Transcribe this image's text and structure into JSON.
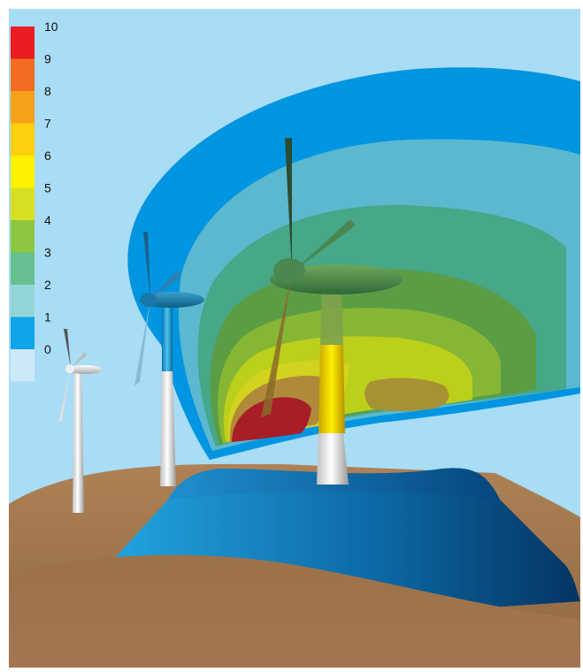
{
  "legend": {
    "bins": [
      {
        "label": "10",
        "color": "#ec1c24"
      },
      {
        "label": "9",
        "color": "#f26d21"
      },
      {
        "label": "8",
        "color": "#f7a21b"
      },
      {
        "label": "7",
        "color": "#fdd00d"
      },
      {
        "label": "6",
        "color": "#fff200"
      },
      {
        "label": "5",
        "color": "#d7df23"
      },
      {
        "label": "4",
        "color": "#8dc63f"
      },
      {
        "label": "3",
        "color": "#66c08f"
      },
      {
        "label": "2",
        "color": "#93d5d6"
      },
      {
        "label": "1",
        "color": "#0ea5e9"
      },
      {
        "label": "0",
        "color": "#cde9f7"
      }
    ]
  },
  "colors": {
    "sky": "#a9dcf5",
    "ground": "#a77a4f",
    "ground_dark": "#8b6239",
    "dome_light": "#1a9ad6",
    "dome_dark": "#063e74",
    "plume_outer": "#0095e0"
  }
}
